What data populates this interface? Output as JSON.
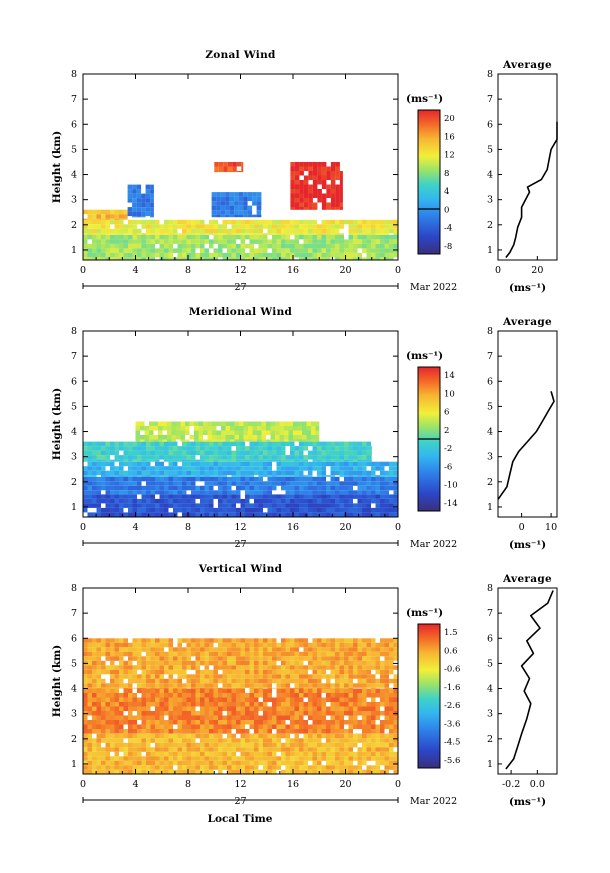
{
  "figure": {
    "date_label": "Mar 2022",
    "day_label": "27",
    "xlabel": "Local Time",
    "x_ticks": [
      "0",
      "4",
      "8",
      "12",
      "16",
      "20",
      "0"
    ],
    "y_ticks": [
      "1",
      "2",
      "3",
      "4",
      "5",
      "6",
      "7",
      "8"
    ],
    "ylabel": "Height (km)",
    "profile_title": "Average",
    "unit_label": "(ms⁻¹)"
  },
  "chart_data": [
    {
      "id": "zonal",
      "type": "heatmap",
      "title": "Zonal Wind",
      "xlabel": "",
      "ylabel": "Height (km)",
      "xlim": [
        0,
        24
      ],
      "ylim": [
        0.6,
        8
      ],
      "colorbar": {
        "label": "(ms⁻¹)",
        "ticks": [
          "20",
          "16",
          "12",
          "8",
          "4",
          "0",
          "-4",
          "-8"
        ],
        "range": [
          -10,
          22
        ],
        "zero_line": 0
      },
      "regions": [
        {
          "x": [
            0,
            24
          ],
          "y": [
            0.6,
            1.6
          ],
          "value": 9
        },
        {
          "x": [
            0,
            24
          ],
          "y": [
            1.6,
            2.2
          ],
          "value": 12
        },
        {
          "x": [
            0,
            3.4
          ],
          "y": [
            2.2,
            2.6
          ],
          "value": 15
        },
        {
          "x": [
            3.4,
            5.4
          ],
          "y": [
            2.3,
            3.6
          ],
          "value": -2
        },
        {
          "x": [
            9.8,
            13.6
          ],
          "y": [
            2.3,
            3.3
          ],
          "value": -2
        },
        {
          "x": [
            10,
            12.2
          ],
          "y": [
            4.1,
            4.5
          ],
          "value": 20
        },
        {
          "x": [
            15.8,
            19.8
          ],
          "y": [
            2.6,
            4.5
          ],
          "value": 22
        }
      ],
      "profile": {
        "xlim": [
          0,
          30
        ],
        "x_ticks": [
          "0",
          "20"
        ],
        "xlabel": "(ms⁻¹)",
        "height_km": [
          0.7,
          0.9,
          1.2,
          1.5,
          1.9,
          2.3,
          2.7,
          3.0,
          3.3,
          3.5,
          3.8,
          4.2,
          4.6,
          5.0,
          5.4,
          5.8,
          6.1
        ],
        "value": [
          4,
          6,
          8,
          9,
          10,
          12,
          12,
          14,
          16,
          15,
          22,
          25,
          26,
          27,
          30,
          32,
          33
        ]
      }
    },
    {
      "id": "meridional",
      "type": "heatmap",
      "title": "Meridional Wind",
      "xlabel": "",
      "ylabel": "Height (km)",
      "xlim": [
        0,
        24
      ],
      "ylim": [
        0.6,
        8
      ],
      "colorbar": {
        "label": "(ms⁻¹)",
        "ticks": [
          "14",
          "10",
          "6",
          "2",
          "-2",
          "-6",
          "-10",
          "-14"
        ],
        "range": [
          -16,
          16
        ],
        "zero_line": 0
      },
      "regions": [
        {
          "x": [
            0,
            24
          ],
          "y": [
            0.6,
            1.5
          ],
          "value": -11
        },
        {
          "x": [
            0,
            24
          ],
          "y": [
            1.5,
            2.2
          ],
          "value": -8
        },
        {
          "x": [
            0,
            24
          ],
          "y": [
            2.2,
            2.8
          ],
          "value": -4
        },
        {
          "x": [
            0,
            22
          ],
          "y": [
            2.8,
            3.6
          ],
          "value": -1
        },
        {
          "x": [
            4,
            18
          ],
          "y": [
            3.6,
            4.4
          ],
          "value": 4
        }
      ],
      "profile": {
        "xlim": [
          -8,
          12
        ],
        "x_ticks": [
          "0",
          "10"
        ],
        "xlabel": "(ms⁻¹)",
        "height_km": [
          1.3,
          1.8,
          2.3,
          2.8,
          3.2,
          3.6,
          4.0,
          4.4,
          4.8,
          5.2,
          5.6
        ],
        "value": [
          -8,
          -5,
          -4,
          -3,
          -1,
          2,
          5,
          7,
          9,
          11,
          10
        ]
      }
    },
    {
      "id": "vertical",
      "type": "heatmap",
      "title": "Vertical Wind",
      "xlabel": "Local Time",
      "ylabel": "Height (km)",
      "xlim": [
        0,
        24
      ],
      "ylim": [
        0.6,
        8
      ],
      "colorbar": {
        "label": "(ms⁻¹)",
        "ticks": [
          "1.5",
          "0.6",
          "-0.6",
          "-1.6",
          "-2.6",
          "-3.6",
          "-4.5",
          "-5.6"
        ],
        "range": [
          -6,
          2
        ],
        "zero_line": null
      },
      "regions": [
        {
          "x": [
            0,
            24
          ],
          "y": [
            0.6,
            2.2
          ],
          "value": 0.3
        },
        {
          "x": [
            0,
            24
          ],
          "y": [
            2.2,
            4.0
          ],
          "value": 0.9
        },
        {
          "x": [
            0,
            24
          ],
          "y": [
            4.0,
            6.0
          ],
          "value": 0.5
        }
      ],
      "profile": {
        "xlim": [
          -0.3,
          0.15
        ],
        "x_ticks": [
          "-0.2",
          "0.0"
        ],
        "xlabel": "(ms⁻¹)",
        "height_km": [
          0.8,
          1.2,
          1.7,
          2.2,
          2.8,
          3.4,
          3.9,
          4.4,
          4.9,
          5.4,
          5.9,
          6.4,
          6.9,
          7.4,
          7.9
        ],
        "value": [
          -0.24,
          -0.18,
          -0.15,
          -0.12,
          -0.08,
          -0.05,
          -0.1,
          -0.06,
          -0.12,
          -0.03,
          -0.08,
          0.02,
          -0.05,
          0.08,
          0.12
        ]
      }
    }
  ]
}
